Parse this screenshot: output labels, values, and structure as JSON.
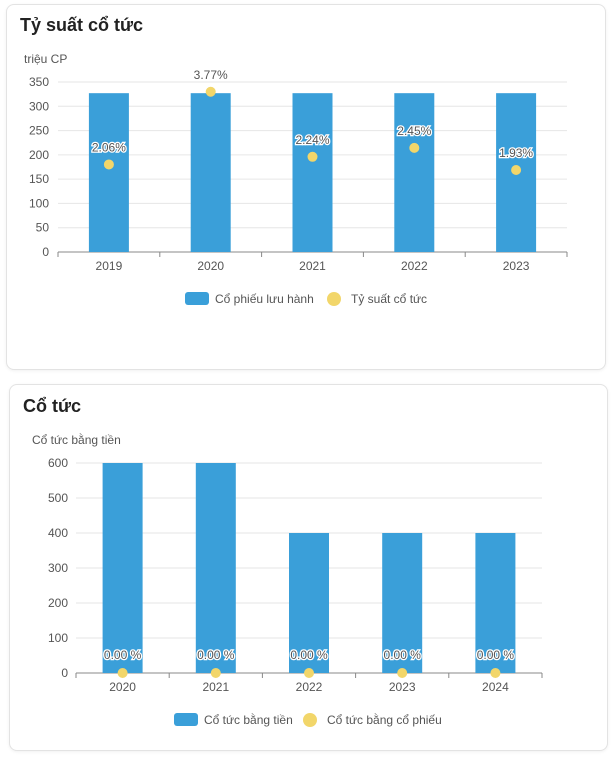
{
  "colors": {
    "bar": "#3a9fd9",
    "dot": "#f2d66a",
    "grid": "#e6e6e6",
    "axis": "#888888",
    "text": "#555555"
  },
  "cards": [
    {
      "title": "Tỷ suất cổ tức"
    },
    {
      "title": "Cổ tức"
    }
  ],
  "chart_data": [
    {
      "type": "bar",
      "title": "Tỷ suất cổ tức",
      "ylabel": "triệu CP",
      "xlabel": "",
      "ylim": [
        0,
        350
      ],
      "yticks": [
        0,
        50,
        100,
        150,
        200,
        250,
        300,
        350
      ],
      "categories": [
        "2019",
        "2020",
        "2021",
        "2022",
        "2023"
      ],
      "series": [
        {
          "name": "Cổ phiếu lưu hành",
          "kind": "bar",
          "values": [
            327,
            327,
            327,
            327,
            327
          ]
        },
        {
          "name": "Tỷ suất cổ tức",
          "kind": "scatter",
          "values": [
            2.06,
            3.77,
            2.24,
            2.45,
            1.93
          ],
          "labels": [
            "2.06%",
            "3.77%",
            "2.24%",
            "2.45%",
            "1.93%"
          ],
          "secondary_ylim": [
            0,
            4.0
          ]
        }
      ],
      "legend": "bottom"
    },
    {
      "type": "bar",
      "title": "Cổ tức",
      "ylabel": "Cổ tức bằng tiền",
      "xlabel": "",
      "ylim": [
        0,
        600
      ],
      "yticks": [
        0,
        100,
        200,
        300,
        400,
        500,
        600
      ],
      "categories": [
        "2020",
        "2021",
        "2022",
        "2023",
        "2024"
      ],
      "series": [
        {
          "name": "Cổ tức bằng tiền",
          "kind": "bar",
          "values": [
            600,
            600,
            400,
            400,
            400
          ]
        },
        {
          "name": "Cổ tức bằng cổ phiếu",
          "kind": "scatter",
          "values": [
            0,
            0,
            0,
            0,
            0
          ],
          "labels": [
            "0.00 %",
            "0.00 %",
            "0.00 %",
            "0.00 %",
            "0.00 %"
          ],
          "secondary_ylim": [
            0,
            1
          ]
        }
      ],
      "legend": "bottom"
    }
  ]
}
